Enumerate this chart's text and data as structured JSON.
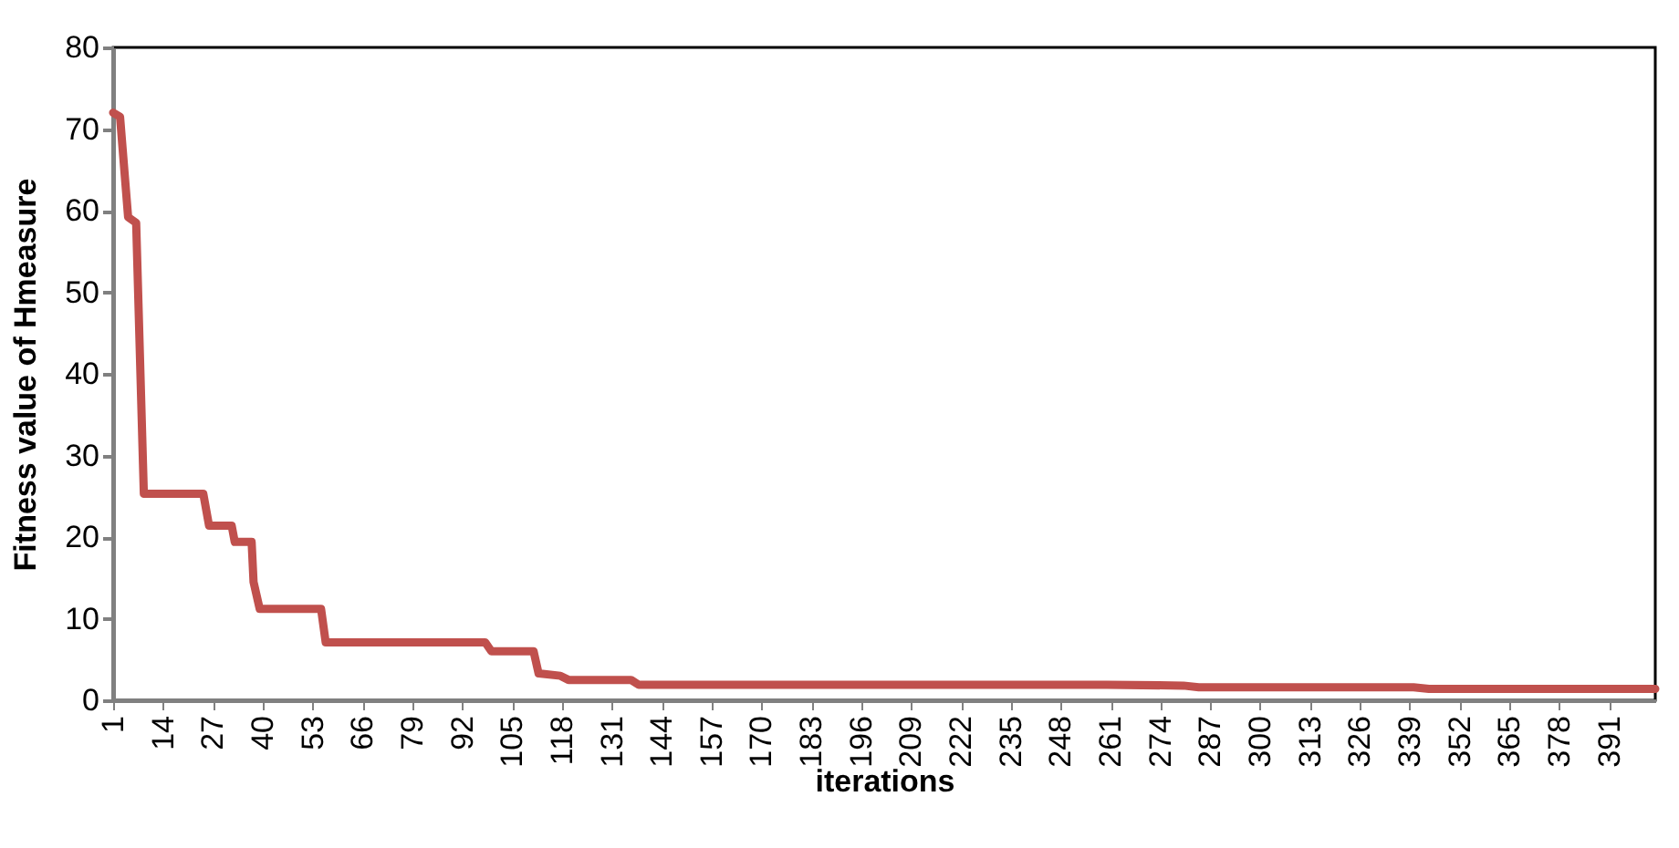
{
  "chart_data": {
    "type": "line",
    "xlabel": "iterations",
    "ylabel": "Fitness value of Hmeasure",
    "x": [
      1,
      2.8,
      4.9,
      7,
      9,
      24.5,
      26,
      31.9,
      32.7,
      37.1,
      37.6,
      39.2,
      55.2,
      56.4,
      98,
      99.6,
      110.6,
      111.9,
      117.6,
      119.7,
      136,
      138,
      260,
      280,
      284,
      340,
      344,
      403
    ],
    "series": [
      {
        "color": "#c0504d",
        "values": [
          72,
          71.5,
          59.2,
          58.5,
          25.3,
          25.3,
          21.4,
          21.4,
          19.4,
          19.4,
          14.5,
          11.2,
          11.2,
          7.1,
          7.1,
          6.0,
          6.0,
          3.3,
          3.0,
          2.5,
          2.5,
          1.9,
          1.9,
          1.8,
          1.6,
          1.6,
          1.4,
          1.4
        ]
      }
    ],
    "xlim": [
      1,
      403
    ],
    "xticks": [
      1,
      14,
      27,
      40,
      53,
      66,
      79,
      92,
      105,
      118,
      131,
      144,
      157,
      170,
      183,
      196,
      209,
      222,
      235,
      248,
      261,
      274,
      287,
      300,
      313,
      326,
      339,
      352,
      365,
      378,
      391
    ],
    "ylim": [
      0,
      80
    ],
    "yticks": [
      0,
      10,
      20,
      30,
      40,
      50,
      60,
      70,
      80
    ],
    "grid": false,
    "marker": "none",
    "line_style": "solid"
  }
}
